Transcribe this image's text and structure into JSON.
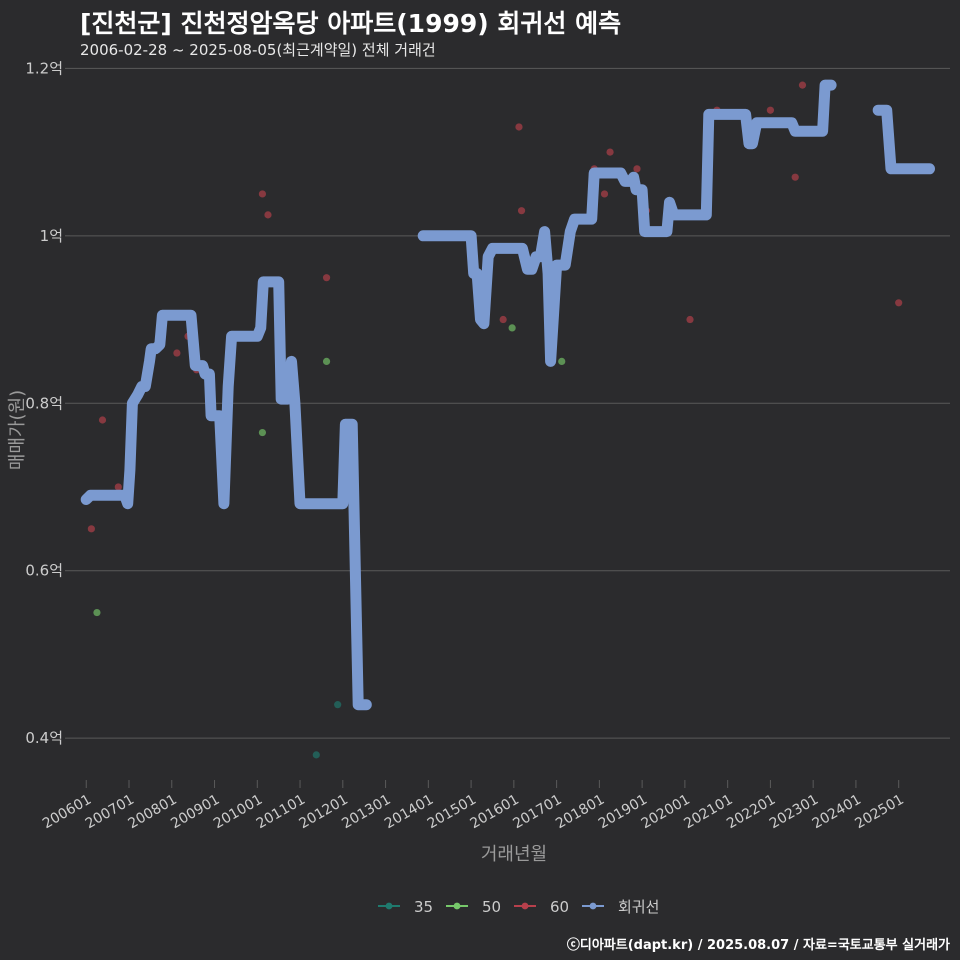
{
  "header": {
    "title": "[진천군] 진천정암옥당 아파트(1999) 회귀선 예측",
    "subtitle": "2006-02-28 ~ 2025-08-05(최근계약일) 전체 거래건"
  },
  "caption": "ⓒ디아파트(dapt.kr) / 2025.08.07 / 자료=국토교통부 실거래가",
  "colors": {
    "background": "#2b2b2d",
    "grid": "#5a5a5a",
    "text": "#cccccc",
    "series_35": "#1f7a6e",
    "series_50": "#76c86a",
    "series_60": "#b8404c",
    "regression": "#7b9ad0"
  },
  "chart_data": {
    "type": "line",
    "title": "[진천군] 진천정암옥당 아파트(1999) 회귀선 예측",
    "xlabel": "거래년월",
    "ylabel": "매매가(원)",
    "ylim": [
      0.35,
      1.21
    ],
    "y_ticks": [
      0.4,
      0.6,
      0.8,
      1.0,
      1.2
    ],
    "y_tick_labels": [
      "0.4억",
      "0.6억",
      "0.8억",
      "1억",
      "1.2억"
    ],
    "x_ticks": [
      2006,
      2007,
      2008,
      2009,
      2010,
      2011,
      2012,
      2013,
      2014,
      2015,
      2016,
      2017,
      2018,
      2019,
      2020,
      2021,
      2022,
      2023,
      2024,
      2025
    ],
    "x_tick_labels": [
      "200601",
      "200701",
      "200801",
      "200901",
      "201001",
      "201101",
      "201201",
      "201301",
      "201401",
      "201501",
      "201601",
      "201701",
      "201801",
      "201901",
      "202001",
      "202101",
      "202201",
      "202301",
      "202401",
      "202501"
    ],
    "xlim": [
      2005.62,
      2026.2
    ],
    "legend": [
      "35",
      "50",
      "60",
      "회귀선"
    ],
    "legend_position": "bottom",
    "series": [
      {
        "name": "35",
        "points": [
          [
            2011.38,
            0.38
          ],
          [
            2011.88,
            0.44
          ]
        ]
      },
      {
        "name": "50",
        "points": [
          [
            2006.25,
            0.55
          ],
          [
            2010.12,
            0.765
          ],
          [
            2011.62,
            0.85
          ],
          [
            2015.96,
            0.89
          ],
          [
            2017.12,
            0.85
          ]
        ]
      },
      {
        "name": "60",
        "points": [
          [
            2006.12,
            0.65
          ],
          [
            2006.38,
            0.78
          ],
          [
            2006.75,
            0.7
          ],
          [
            2008.12,
            0.86
          ],
          [
            2008.38,
            0.88
          ],
          [
            2008.58,
            0.84
          ],
          [
            2010.12,
            1.05
          ],
          [
            2010.25,
            1.025
          ],
          [
            2011.62,
            0.95
          ],
          [
            2015.75,
            0.9
          ],
          [
            2016.12,
            1.13
          ],
          [
            2016.18,
            1.03
          ],
          [
            2017.88,
            1.08
          ],
          [
            2018.12,
            1.05
          ],
          [
            2018.25,
            1.1
          ],
          [
            2018.88,
            1.08
          ],
          [
            2019.1,
            1.03
          ],
          [
            2020.12,
            0.9
          ],
          [
            2020.75,
            1.15
          ],
          [
            2022.0,
            1.15
          ],
          [
            2022.58,
            1.07
          ],
          [
            2022.75,
            1.18
          ],
          [
            2024.75,
            1.15
          ],
          [
            2025.0,
            0.92
          ]
        ]
      }
    ],
    "regression_segments": [
      [
        [
          2006.0,
          0.685
        ],
        [
          2006.1,
          0.69
        ],
        [
          2006.9,
          0.69
        ],
        [
          2006.97,
          0.68
        ],
        [
          2007.02,
          0.72
        ],
        [
          2007.08,
          0.8
        ],
        [
          2007.2,
          0.81
        ],
        [
          2007.3,
          0.82
        ],
        [
          2007.38,
          0.82
        ],
        [
          2007.48,
          0.85
        ],
        [
          2007.52,
          0.865
        ],
        [
          2007.62,
          0.865
        ],
        [
          2007.72,
          0.87
        ],
        [
          2007.78,
          0.905
        ],
        [
          2008.45,
          0.905
        ],
        [
          2008.55,
          0.845
        ],
        [
          2008.72,
          0.845
        ],
        [
          2008.78,
          0.835
        ],
        [
          2008.88,
          0.835
        ],
        [
          2008.92,
          0.785
        ],
        [
          2009.12,
          0.785
        ],
        [
          2009.22,
          0.68
        ],
        [
          2009.32,
          0.82
        ],
        [
          2009.4,
          0.88
        ],
        [
          2010.0,
          0.88
        ],
        [
          2010.08,
          0.89
        ],
        [
          2010.14,
          0.945
        ],
        [
          2010.5,
          0.945
        ],
        [
          2010.56,
          0.805
        ],
        [
          2010.72,
          0.805
        ],
        [
          2010.8,
          0.85
        ],
        [
          2010.88,
          0.8
        ],
        [
          2011.0,
          0.68
        ],
        [
          2012.0,
          0.68
        ],
        [
          2012.06,
          0.775
        ],
        [
          2012.22,
          0.775
        ],
        [
          2012.36,
          0.44
        ],
        [
          2012.55,
          0.44
        ]
      ],
      [
        [
          2013.88,
          1.0
        ],
        [
          2015.0,
          1.0
        ],
        [
          2015.06,
          0.955
        ],
        [
          2015.14,
          0.955
        ],
        [
          2015.22,
          0.9
        ],
        [
          2015.3,
          0.895
        ],
        [
          2015.4,
          0.975
        ],
        [
          2015.5,
          0.985
        ],
        [
          2016.2,
          0.985
        ],
        [
          2016.32,
          0.96
        ],
        [
          2016.42,
          0.96
        ],
        [
          2016.52,
          0.975
        ],
        [
          2016.62,
          0.975
        ],
        [
          2016.72,
          1.005
        ],
        [
          2016.8,
          0.955
        ],
        [
          2016.86,
          0.85
        ],
        [
          2017.0,
          0.965
        ],
        [
          2017.2,
          0.965
        ],
        [
          2017.32,
          1.005
        ],
        [
          2017.42,
          1.02
        ],
        [
          2017.82,
          1.02
        ],
        [
          2017.88,
          1.075
        ],
        [
          2018.5,
          1.075
        ],
        [
          2018.6,
          1.065
        ],
        [
          2018.72,
          1.065
        ],
        [
          2018.8,
          1.07
        ],
        [
          2018.86,
          1.055
        ],
        [
          2019.0,
          1.055
        ],
        [
          2019.06,
          1.005
        ],
        [
          2019.58,
          1.005
        ],
        [
          2019.64,
          1.04
        ],
        [
          2019.74,
          1.025
        ],
        [
          2020.0,
          1.025
        ],
        [
          2020.1,
          1.025
        ],
        [
          2020.5,
          1.025
        ],
        [
          2020.56,
          1.145
        ],
        [
          2021.42,
          1.145
        ],
        [
          2021.5,
          1.11
        ],
        [
          2021.58,
          1.11
        ],
        [
          2021.68,
          1.135
        ],
        [
          2022.5,
          1.135
        ],
        [
          2022.58,
          1.125
        ],
        [
          2023.22,
          1.125
        ],
        [
          2023.28,
          1.18
        ],
        [
          2023.42,
          1.18
        ]
      ],
      [
        [
          2024.52,
          1.15
        ],
        [
          2024.72,
          1.15
        ],
        [
          2024.82,
          1.08
        ],
        [
          2025.72,
          1.08
        ]
      ]
    ]
  }
}
